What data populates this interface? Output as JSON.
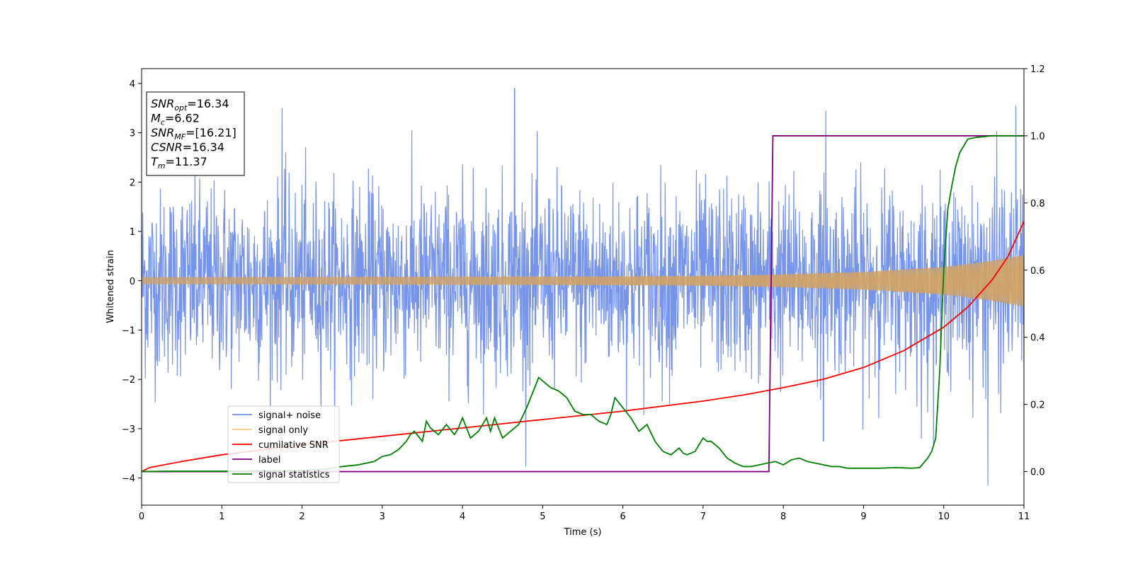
{
  "chart_data": {
    "type": "line",
    "xlabel": "Time (s)",
    "ylabel": "Whitened strain",
    "xlim": [
      0,
      11
    ],
    "ylim_left": [
      -4.55,
      4.3
    ],
    "ylim_right": [
      -0.1,
      1.2
    ],
    "x_ticks": [
      0,
      1,
      2,
      3,
      4,
      5,
      6,
      7,
      8,
      9,
      10,
      11
    ],
    "y_ticks_left": [
      -4,
      -3,
      -2,
      -1,
      0,
      1,
      2,
      3,
      4
    ],
    "y_ticks_right": [
      0.0,
      0.2,
      0.4,
      0.6,
      0.8,
      1.0,
      1.2
    ],
    "grid": false,
    "legend_placement": "lower-left",
    "info_box": {
      "placement": "upper-left",
      "lines": [
        {
          "var": "SNR",
          "sub": "opt",
          "rest": "=16.34"
        },
        {
          "var": "M",
          "sub": "c",
          "rest": "=6.62"
        },
        {
          "var": "SNR",
          "sub": "MF",
          "rest": "=[16.21]"
        },
        {
          "var": "CSNR",
          "sub": "",
          "rest": "=16.34"
        },
        {
          "var": "T",
          "sub": "m",
          "rest": "=11.37"
        }
      ]
    },
    "series": [
      {
        "name": "signal+ noise",
        "axis": "left",
        "color": "#6f8ee8",
        "description_noise_sigma": 0.95,
        "peak_values": [
          3.9,
          3.55,
          3.5,
          3.45,
          -4.15,
          -3.25,
          -3.2
        ],
        "peak_times": [
          4.65,
          10.9,
          1.75,
          8.53,
          10.55,
          8.5,
          9.72
        ]
      },
      {
        "name": "signal only",
        "axis": "left",
        "color": "#f5b041",
        "envelope": {
          "x": [
            0,
            2,
            4,
            6,
            7,
            8,
            9,
            10,
            10.5,
            11
          ],
          "amp": [
            0.07,
            0.075,
            0.08,
            0.09,
            0.1,
            0.13,
            0.18,
            0.28,
            0.38,
            0.52
          ]
        }
      },
      {
        "name": "cumilative SNR",
        "axis": "right",
        "color": "#ff0000",
        "x": [
          0,
          0.1,
          0.5,
          1,
          2,
          3,
          4,
          5,
          6,
          7,
          7.5,
          8,
          8.5,
          9,
          9.5,
          10,
          10.3,
          10.6,
          10.8,
          11
        ],
        "values": [
          0.0,
          0.012,
          0.03,
          0.05,
          0.08,
          0.105,
          0.13,
          0.155,
          0.18,
          0.21,
          0.228,
          0.25,
          0.275,
          0.31,
          0.36,
          0.43,
          0.49,
          0.57,
          0.64,
          0.745
        ]
      },
      {
        "name": "label",
        "axis": "right",
        "color": "#800080",
        "x": [
          0,
          7.82,
          7.87,
          11
        ],
        "values": [
          0,
          0,
          1,
          1
        ]
      },
      {
        "name": "signal statistics",
        "axis": "right",
        "color": "#008000",
        "x": [
          0,
          0.3,
          1,
          1.5,
          2,
          2.3,
          2.5,
          2.7,
          2.9,
          3.0,
          3.1,
          3.2,
          3.3,
          3.35,
          3.4,
          3.5,
          3.55,
          3.6,
          3.7,
          3.8,
          3.9,
          3.95,
          4.0,
          4.05,
          4.1,
          4.2,
          4.3,
          4.35,
          4.4,
          4.5,
          4.6,
          4.7,
          4.8,
          4.9,
          4.95,
          5.0,
          5.1,
          5.2,
          5.3,
          5.4,
          5.5,
          5.6,
          5.7,
          5.8,
          5.85,
          5.9,
          6.0,
          6.1,
          6.2,
          6.3,
          6.4,
          6.5,
          6.6,
          6.7,
          6.75,
          6.8,
          6.9,
          7.0,
          7.05,
          7.1,
          7.2,
          7.3,
          7.4,
          7.5,
          7.6,
          7.7,
          7.8,
          7.9,
          8.0,
          8.1,
          8.2,
          8.3,
          8.4,
          8.5,
          8.6,
          8.7,
          8.8,
          9.0,
          9.2,
          9.4,
          9.6,
          9.7,
          9.8,
          9.85,
          9.9,
          9.95,
          10.0,
          10.05,
          10.1,
          10.15,
          10.2,
          10.3,
          10.4,
          10.6,
          10.8,
          11
        ],
        "values": [
          0,
          0.001,
          0.001,
          0.002,
          0.003,
          0.008,
          0.015,
          0.02,
          0.03,
          0.045,
          0.05,
          0.065,
          0.09,
          0.11,
          0.12,
          0.09,
          0.15,
          0.13,
          0.11,
          0.14,
          0.11,
          0.13,
          0.16,
          0.13,
          0.1,
          0.12,
          0.16,
          0.12,
          0.16,
          0.1,
          0.12,
          0.14,
          0.19,
          0.25,
          0.28,
          0.27,
          0.25,
          0.24,
          0.22,
          0.18,
          0.17,
          0.17,
          0.15,
          0.14,
          0.17,
          0.22,
          0.19,
          0.16,
          0.12,
          0.14,
          0.09,
          0.06,
          0.05,
          0.07,
          0.055,
          0.05,
          0.06,
          0.1,
          0.09,
          0.09,
          0.07,
          0.04,
          0.025,
          0.015,
          0.015,
          0.02,
          0.025,
          0.03,
          0.02,
          0.035,
          0.04,
          0.03,
          0.025,
          0.02,
          0.015,
          0.015,
          0.01,
          0.01,
          0.01,
          0.012,
          0.01,
          0.012,
          0.04,
          0.06,
          0.1,
          0.3,
          0.6,
          0.78,
          0.85,
          0.91,
          0.95,
          0.99,
          0.995,
          1.0,
          1.0,
          1.0
        ]
      }
    ]
  }
}
